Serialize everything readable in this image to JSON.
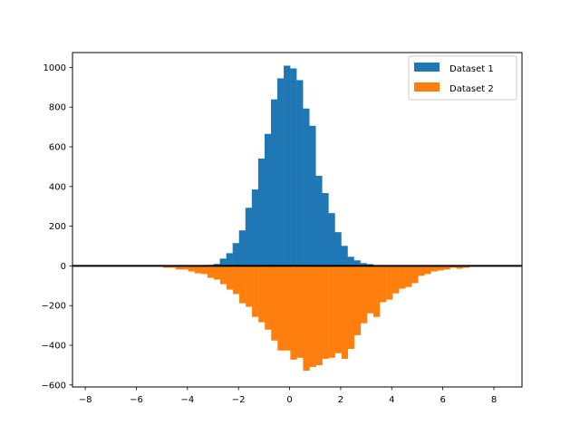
{
  "chart_data": {
    "type": "bar",
    "subtype": "histogram",
    "title": "",
    "xlabel": "",
    "ylabel": "",
    "xlim": [
      -8.5,
      9.1
    ],
    "ylim": [
      -610,
      1075
    ],
    "grid": false,
    "legend_position": "upper right",
    "x_ticks": [
      -8,
      -6,
      -4,
      -2,
      0,
      2,
      4,
      6,
      8
    ],
    "x_tick_labels": [
      "−8",
      "−6",
      "−4",
      "−2",
      "0",
      "2",
      "4",
      "6",
      "8"
    ],
    "y_ticks": [
      -600,
      -400,
      -200,
      0,
      200,
      400,
      600,
      800,
      1000
    ],
    "y_tick_labels": [
      "−600",
      "−400",
      "−200",
      "0",
      "200",
      "400",
      "600",
      "800",
      "1000"
    ],
    "bin_width": 0.248,
    "horizontal_line": {
      "y": 0,
      "color": "#000000"
    },
    "series": [
      {
        "name": "Dataset 1",
        "color": "#1f77b4",
        "bin_starts": [
          -3.23,
          -2.98,
          -2.73,
          -2.48,
          -2.23,
          -1.98,
          -1.73,
          -1.48,
          -1.23,
          -0.98,
          -0.73,
          -0.48,
          -0.23,
          0.02,
          0.27,
          0.52,
          0.77,
          1.02,
          1.27,
          1.52,
          1.77,
          2.02,
          2.27,
          2.52,
          2.77,
          3.02
        ],
        "values": [
          5,
          10,
          37,
          64,
          115,
          179,
          293,
          385,
          541,
          665,
          839,
          945,
          1009,
          995,
          936,
          793,
          706,
          454,
          367,
          266,
          170,
          101,
          46,
          28,
          14,
          9
        ]
      },
      {
        "name": "Dataset 2",
        "color": "#ff7f0e",
        "bin_starts": [
          -4.96,
          -4.71,
          -4.46,
          -4.21,
          -3.97,
          -3.72,
          -3.47,
          -3.22,
          -2.97,
          -2.72,
          -2.47,
          -2.22,
          -1.97,
          -1.72,
          -1.47,
          -1.22,
          -0.97,
          -0.72,
          -0.47,
          -0.22,
          0.03,
          0.28,
          0.53,
          0.78,
          1.03,
          1.28,
          1.53,
          1.78,
          2.03,
          2.28,
          2.53,
          2.78,
          3.03,
          3.28,
          3.53,
          3.78,
          4.03,
          4.28,
          4.53,
          4.78,
          5.03,
          5.28,
          5.53,
          5.78,
          6.03,
          6.28,
          6.53,
          6.78
        ],
        "values": [
          -9,
          -9,
          -18,
          -18,
          -28,
          -37,
          -41,
          -60,
          -69,
          -92,
          -119,
          -142,
          -188,
          -206,
          -257,
          -284,
          -321,
          -376,
          -426,
          -426,
          -472,
          -463,
          -528,
          -509,
          -500,
          -468,
          -463,
          -440,
          -468,
          -418,
          -349,
          -289,
          -239,
          -257,
          -183,
          -170,
          -138,
          -115,
          -106,
          -87,
          -50,
          -41,
          -28,
          -23,
          -18,
          -9,
          -14,
          -9
        ]
      }
    ]
  },
  "legend": {
    "items": [
      {
        "label": "Dataset 1",
        "color": "#1f77b4"
      },
      {
        "label": "Dataset 2",
        "color": "#ff7f0e"
      }
    ]
  }
}
